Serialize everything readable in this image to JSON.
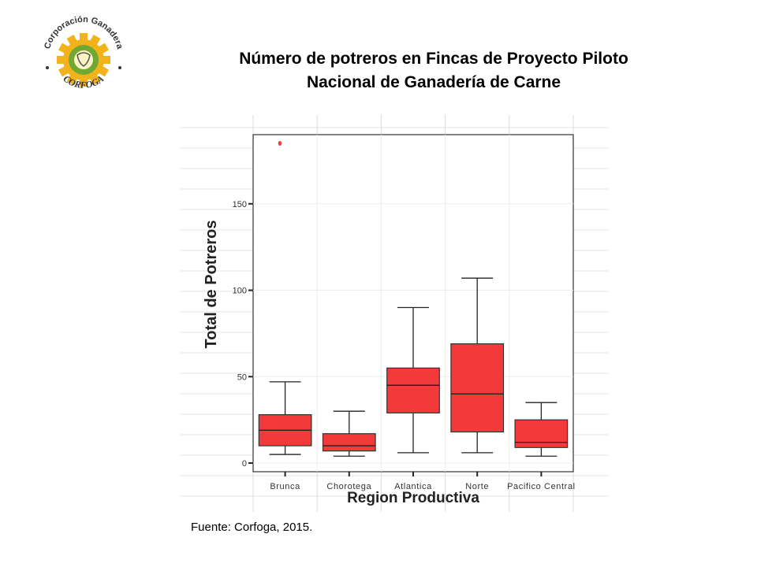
{
  "logo": {
    "text_top": "Corporación Ganadera",
    "text_bottom": "CORFOGA",
    "colors": {
      "gear_outer": "#f2b21c",
      "gear_inner": "#6fa832",
      "text": "#333333",
      "face": "#fdf3c4"
    },
    "icon": "cattle-gear-logo"
  },
  "title": {
    "line1": "Número de potreros en Fincas de Proyecto Piloto",
    "line2": "Nacional de Ganadería de Carne"
  },
  "source": "Fuente: Corfoga, 2015.",
  "chart_data": {
    "type": "boxplot",
    "xlabel": "Region Productiva",
    "ylabel": "Total de Potreros",
    "ylim": [
      -5,
      190
    ],
    "yticks": [
      0,
      50,
      100,
      150
    ],
    "grid": true,
    "box_color": "#f23a3a",
    "categories": [
      "Brunca",
      "Chorotega",
      "Atlantica",
      "Norte",
      "Pacifico Central"
    ],
    "boxes": [
      {
        "category": "Brunca",
        "whisker_low": 5,
        "q1": 10,
        "median": 19,
        "q3": 28,
        "whisker_high": 47,
        "outliers": [
          185
        ]
      },
      {
        "category": "Chorotega",
        "whisker_low": 4,
        "q1": 7,
        "median": 10,
        "q3": 17,
        "whisker_high": 30,
        "outliers": []
      },
      {
        "category": "Atlantica",
        "whisker_low": 6,
        "q1": 29,
        "median": 45,
        "q3": 55,
        "whisker_high": 90,
        "outliers": []
      },
      {
        "category": "Norte",
        "whisker_low": 6,
        "q1": 18,
        "median": 40,
        "q3": 69,
        "whisker_high": 107,
        "outliers": []
      },
      {
        "category": "Pacifico Central",
        "whisker_low": 4,
        "q1": 9,
        "median": 12,
        "q3": 25,
        "whisker_high": 35,
        "outliers": []
      }
    ]
  }
}
